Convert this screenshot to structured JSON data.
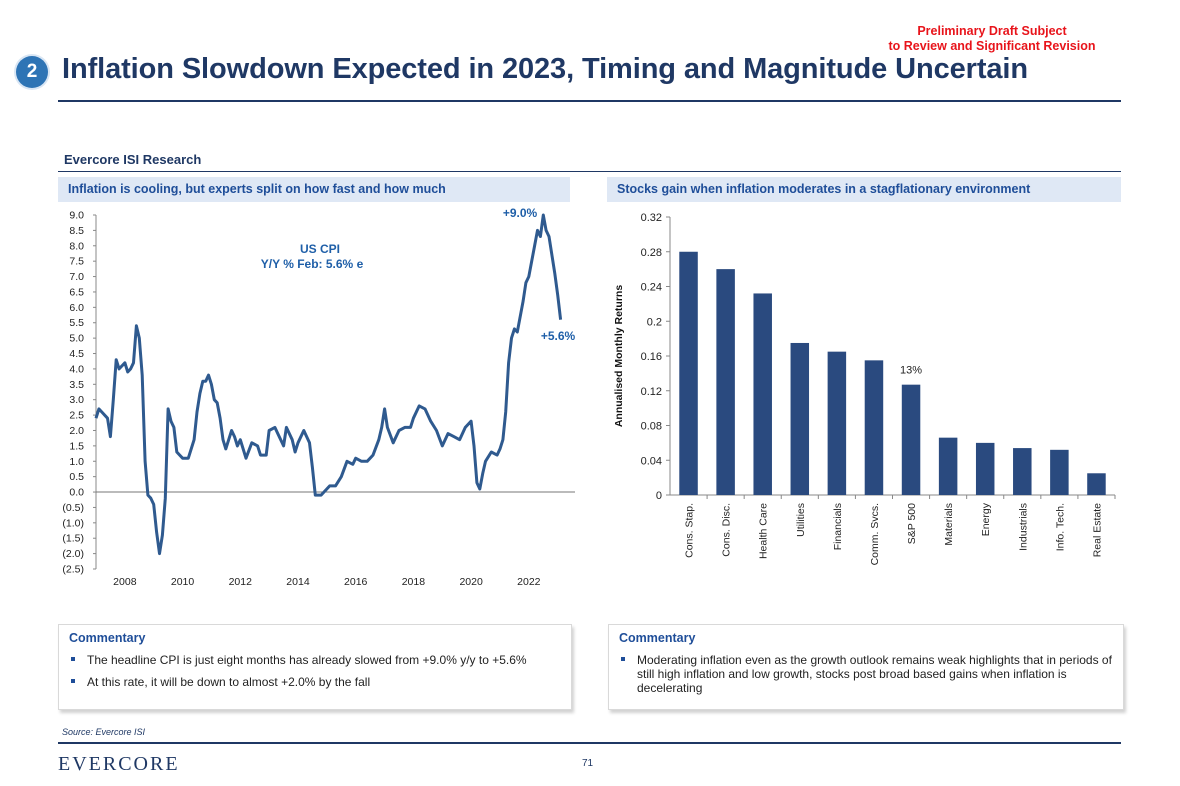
{
  "header": {
    "draft_notice_line1": "Preliminary Draft Subject",
    "draft_notice_line2": "to Review and Significant Revision",
    "badge_number": "2",
    "title": "Inflation Slowdown Expected in 2023, Timing and Magnitude Uncertain"
  },
  "section_label": "Evercore ISI Research",
  "left_panel": {
    "header": "Inflation is cooling, but experts split on how fast and how much",
    "commentary_title": "Commentary",
    "commentary": [
      "The headline CPI is just eight months has already slowed from +9.0% y/y to +5.6%",
      "At this rate, it will be down to almost +2.0% by the fall"
    ]
  },
  "right_panel": {
    "header": "Stocks gain when inflation moderates in a stagflationary environment",
    "commentary_title": "Commentary",
    "commentary": [
      "Moderating inflation even as the growth outlook remains weak highlights that in periods of still high inflation and low growth, stocks post broad based gains when inflation is decelerating"
    ]
  },
  "footer": {
    "source": "Source: Evercore ISI",
    "logo": "Evercore",
    "page_number": "71"
  },
  "colors": {
    "navy": "#1f3864",
    "bar": "#2a4a7f",
    "line": "#2f5a8f",
    "draft_red": "#e8141b",
    "accent": "#2e74b5"
  },
  "chart_data": [
    {
      "type": "line",
      "title": "US CPI",
      "subtitle": "Y/Y % Feb: 5.6% e",
      "annotations": [
        "+9.0%",
        "+5.6%"
      ],
      "xlim": [
        2007.0,
        2023.6
      ],
      "ylim": [
        -2.5,
        9.0
      ],
      "x_ticks": [
        2008,
        2010,
        2012,
        2014,
        2016,
        2018,
        2020,
        2022
      ],
      "y_tick_labels": [
        "9.0",
        "8.5",
        "8.0",
        "7.5",
        "7.0",
        "6.5",
        "6.0",
        "5.5",
        "5.0",
        "4.5",
        "4.0",
        "3.5",
        "3.0",
        "2.5",
        "2.0",
        "1.5",
        "1.0",
        "0.5",
        "0.0",
        "(0.5)",
        "(1.0)",
        "(1.5)",
        "(2.0)",
        "(2.5)"
      ],
      "y_ticks": [
        9.0,
        8.5,
        8.0,
        7.5,
        7.0,
        6.5,
        6.0,
        5.5,
        5.0,
        4.5,
        4.0,
        3.5,
        3.0,
        2.5,
        2.0,
        1.5,
        1.0,
        0.5,
        0.0,
        -0.5,
        -1.0,
        -1.5,
        -2.0,
        -2.5
      ],
      "series": [
        {
          "x": [
            2007.0,
            2007.1,
            2007.2,
            2007.4,
            2007.5,
            2007.6,
            2007.7,
            2007.8,
            2008.0,
            2008.1,
            2008.2,
            2008.3,
            2008.4,
            2008.5,
            2008.6,
            2008.7,
            2008.8,
            2008.9,
            2009.0,
            2009.1,
            2009.2,
            2009.3,
            2009.4,
            2009.5,
            2009.6,
            2009.7,
            2009.8,
            2009.9,
            2010.0,
            2010.1,
            2010.2,
            2010.3,
            2010.4,
            2010.5,
            2010.6,
            2010.7,
            2010.8,
            2010.9,
            2011.0,
            2011.1,
            2011.2,
            2011.3,
            2011.4,
            2011.5,
            2011.6,
            2011.7,
            2011.8,
            2011.9,
            2012.0,
            2012.2,
            2012.4,
            2012.6,
            2012.7,
            2012.9,
            2013.0,
            2013.2,
            2013.3,
            2013.5,
            2013.6,
            2013.8,
            2013.9,
            2014.0,
            2014.2,
            2014.4,
            2014.5,
            2014.6,
            2014.8,
            2014.9,
            2015.0,
            2015.1,
            2015.3,
            2015.5,
            2015.7,
            2015.9,
            2016.0,
            2016.2,
            2016.4,
            2016.6,
            2016.8,
            2016.9,
            2017.0,
            2017.1,
            2017.3,
            2017.5,
            2017.7,
            2017.9,
            2018.0,
            2018.2,
            2018.4,
            2018.6,
            2018.8,
            2019.0,
            2019.2,
            2019.4,
            2019.6,
            2019.8,
            2020.0,
            2020.1,
            2020.2,
            2020.3,
            2020.4,
            2020.5,
            2020.7,
            2020.9,
            2021.0,
            2021.1,
            2021.2,
            2021.3,
            2021.4,
            2021.5,
            2021.6,
            2021.8,
            2021.9,
            2022.0,
            2022.1,
            2022.2,
            2022.3,
            2022.4,
            2022.5,
            2022.6,
            2022.7,
            2022.8,
            2022.9,
            2023.0,
            2023.1
          ],
          "y": [
            2.4,
            2.7,
            2.6,
            2.4,
            1.8,
            3.0,
            4.3,
            4.0,
            4.2,
            3.9,
            4.0,
            4.2,
            5.4,
            5.0,
            3.8,
            1.0,
            -0.1,
            -0.2,
            -0.4,
            -1.3,
            -2.0,
            -1.4,
            -0.2,
            2.7,
            2.3,
            2.1,
            1.3,
            1.2,
            1.1,
            1.1,
            1.1,
            1.4,
            1.7,
            2.6,
            3.2,
            3.6,
            3.6,
            3.8,
            3.5,
            3.0,
            2.9,
            2.4,
            1.7,
            1.4,
            1.7,
            2.0,
            1.8,
            1.5,
            1.7,
            1.1,
            1.6,
            1.5,
            1.2,
            1.2,
            2.0,
            2.1,
            1.9,
            1.5,
            2.1,
            1.7,
            1.3,
            1.6,
            2.0,
            1.6,
            0.8,
            -0.1,
            -0.1,
            0.0,
            0.1,
            0.2,
            0.2,
            0.5,
            1.0,
            0.9,
            1.1,
            1.0,
            1.0,
            1.2,
            1.7,
            2.1,
            2.7,
            2.1,
            1.6,
            2.0,
            2.1,
            2.1,
            2.4,
            2.8,
            2.7,
            2.3,
            2.0,
            1.5,
            1.9,
            1.8,
            1.7,
            2.1,
            2.3,
            1.5,
            0.3,
            0.1,
            0.6,
            1.0,
            1.3,
            1.2,
            1.4,
            1.7,
            2.6,
            4.2,
            5.0,
            5.3,
            5.2,
            6.2,
            6.8,
            7.0,
            7.5,
            8.0,
            8.5,
            8.3,
            9.0,
            8.5,
            8.3,
            7.7,
            7.1,
            6.4,
            5.6
          ]
        }
      ]
    },
    {
      "type": "bar",
      "ylabel": "Annualised Monthly Returns",
      "ylim": [
        0,
        0.32
      ],
      "y_ticks": [
        0,
        0.04,
        0.08,
        0.12,
        0.16,
        0.2,
        0.24,
        0.28,
        0.32
      ],
      "y_tick_labels": [
        "0",
        "0.04",
        "0.08",
        "0.12",
        "0.16",
        "0.2",
        "0.24",
        "0.28",
        "0.32"
      ],
      "categories": [
        "Cons. Stap.",
        "Cons. Disc.",
        "Health Care",
        "Utilities",
        "Financials",
        "Comm. Svcs.",
        "S&P 500",
        "Materials",
        "Energy",
        "Industrials",
        "Info. Tech.",
        "Real Estate"
      ],
      "values": [
        0.28,
        0.26,
        0.232,
        0.175,
        0.165,
        0.155,
        0.127,
        0.066,
        0.06,
        0.054,
        0.052,
        0.025
      ],
      "data_labels": {
        "S&P 500": "13%"
      }
    }
  ]
}
